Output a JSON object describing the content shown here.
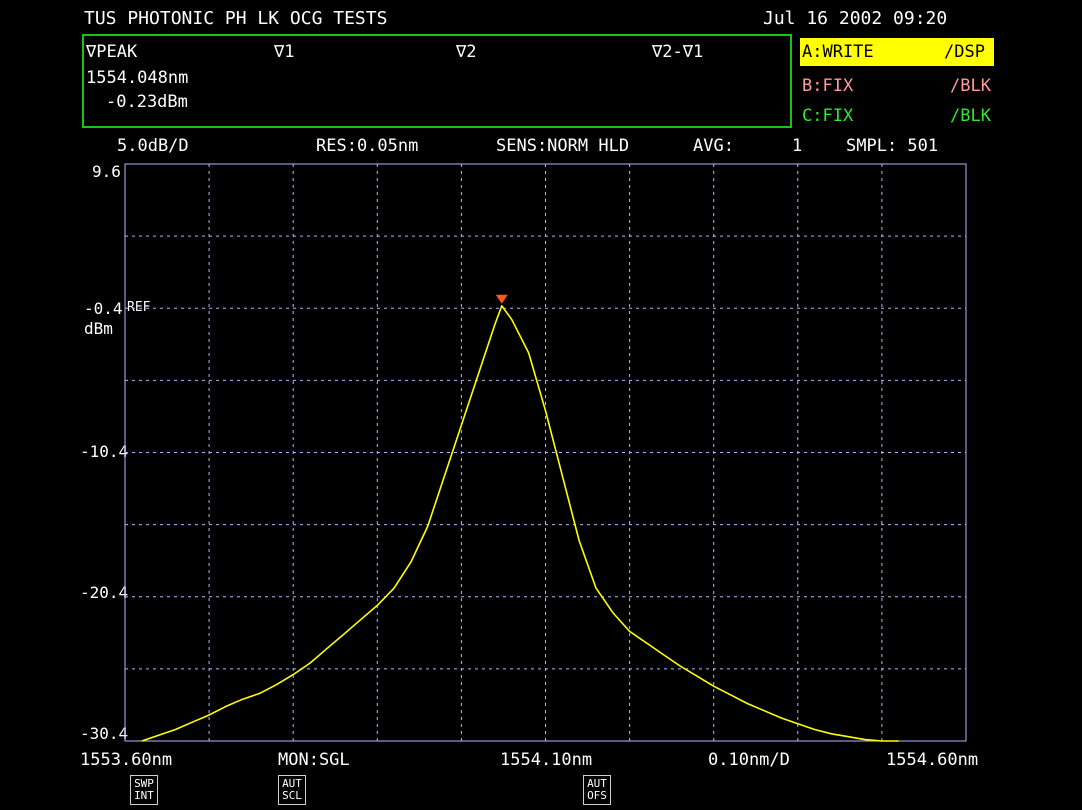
{
  "header": {
    "title": "TUS PHOTONIC PH LK OCG TESTS",
    "datetime": "Jul 16 2002 09:20"
  },
  "markers": {
    "peak_label": "∇PEAK",
    "m1_label": "∇1",
    "m2_label": "∇2",
    "diff_label": "∇2-∇1",
    "peak_wavelength": "1554.048nm",
    "peak_level": "-0.23dBm"
  },
  "traces": [
    {
      "name": "A:WRITE",
      "mode": "/DSP",
      "color": "#ffff00"
    },
    {
      "name": "B:FIX",
      "mode": "/BLK",
      "color": "#ff9b9b"
    },
    {
      "name": "C:FIX",
      "mode": "/BLK",
      "color": "#30e830"
    }
  ],
  "settings": {
    "scale": "5.0dB/D",
    "res": "RES:0.05nm",
    "sens": "SENS:NORM HLD",
    "avg_label": "AVG:",
    "avg_value": "1",
    "smpl": "SMPL: 501"
  },
  "axis": {
    "y_ticks": [
      "9.6",
      "-0.4",
      "-10.4",
      "-20.4",
      "-30.4"
    ],
    "ref_label": "REF",
    "y_unit": "dBm",
    "x_start": "1553.60nm",
    "x_center": "1554.10nm",
    "x_end": "1554.60nm",
    "x_span": "0.10nm/D",
    "monitor": "MON:SGL"
  },
  "softkeys": [
    {
      "line1": "SWP",
      "line2": "INT"
    },
    {
      "line1": "AUT",
      "line2": "SCL"
    },
    {
      "line1": "AUT",
      "line2": "OFS"
    }
  ],
  "colors": {
    "grid": "#b4b4ff",
    "trace": "#ffff00",
    "marker": "#ff5a1e",
    "border": "#19c219"
  },
  "chart_data": {
    "type": "line",
    "xlabel": "",
    "ylabel": "dBm",
    "xlim": [
      1553.6,
      1554.6
    ],
    "ylim": [
      -30.4,
      9.6
    ],
    "grid": true,
    "peak": {
      "x": 1554.048,
      "y": -0.23
    },
    "series": [
      {
        "x": [
          1553.62,
          1553.64,
          1553.66,
          1553.68,
          1553.7,
          1553.72,
          1553.74,
          1553.76,
          1553.78,
          1553.8,
          1553.82,
          1553.84,
          1553.86,
          1553.88,
          1553.9,
          1553.92,
          1553.94,
          1553.96,
          1553.98,
          1554.0,
          1554.02,
          1554.04,
          1554.048,
          1554.06,
          1554.08,
          1554.1,
          1554.12,
          1554.14,
          1554.16,
          1554.18,
          1554.2,
          1554.22,
          1554.24,
          1554.26,
          1554.28,
          1554.3,
          1554.32,
          1554.34,
          1554.36,
          1554.38,
          1554.4,
          1554.42,
          1554.44,
          1554.46,
          1554.48,
          1554.5,
          1554.52
        ],
        "y": [
          -30.4,
          -30.0,
          -29.6,
          -29.1,
          -28.6,
          -28.0,
          -27.5,
          -27.1,
          -26.5,
          -25.8,
          -25.0,
          -24.0,
          -23.0,
          -22.0,
          -21.0,
          -19.8,
          -18.0,
          -15.5,
          -12.0,
          -8.5,
          -5.0,
          -1.5,
          -0.23,
          -1.2,
          -3.5,
          -7.5,
          -12.0,
          -16.5,
          -19.8,
          -21.5,
          -22.8,
          -23.6,
          -24.4,
          -25.2,
          -25.9,
          -26.6,
          -27.2,
          -27.8,
          -28.3,
          -28.8,
          -29.2,
          -29.6,
          -29.9,
          -30.1,
          -30.3,
          -30.4,
          -30.4
        ]
      }
    ]
  }
}
